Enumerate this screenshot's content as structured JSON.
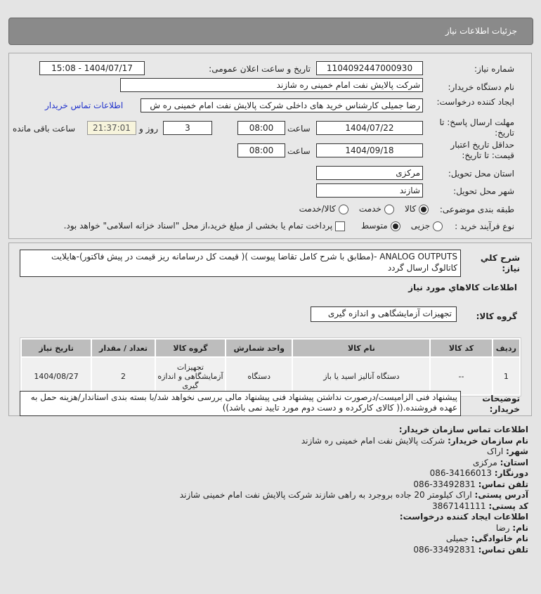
{
  "header": {
    "title": "جزئیات اطلاعات نیاز"
  },
  "form": {
    "need_number_label": "شماره نیاز:",
    "need_number": "1104092447000930",
    "announce_label": "تاریخ و ساعت اعلان عمومی:",
    "announce_value": "1404/07/17 - 15:08",
    "buyer_label": "نام دستگاه خریدار:",
    "buyer_value": "شرکت پالایش نفت امام خمینی  ره  شازند",
    "creator_label": "ایجاد کننده درخواست:",
    "creator_value": "رضا جمیلی کارشناس خرید های داخلی  شرکت پالایش نفت امام خمینی  ره  ش",
    "contact_link": "اطلاعات تماس خریدار",
    "deadline_label": "مهلت ارسال پاسخ: تا تاریخ:",
    "deadline_date": "1404/07/22",
    "time_label": "ساعت",
    "deadline_time": "08:00",
    "days": "3",
    "days_label": "روز و",
    "remaining": "21:37:01",
    "remaining_label": "ساعت باقی مانده",
    "validity_label": "حداقل تاریخ اعتبار قیمت: تا تاریخ:",
    "validity_date": "1404/09/18",
    "validity_time": "08:00",
    "province_label": "استان محل تحویل:",
    "province": "مرکزی",
    "city_label": "شهر محل تحویل:",
    "city": "شازند",
    "category_label": "طبقه بندی موضوعی:",
    "category_options": [
      "کالا",
      "خدمت",
      "کالا/خدمت"
    ],
    "category_selected": "کالا",
    "process_label": "نوع فرآیند خرید :",
    "process_options": [
      "جزیی",
      "متوسط"
    ],
    "process_selected": "متوسط",
    "payment_note": "پرداخت تمام یا بخشی از مبلغ خرید،از محل \"اسناد خزانه اسلامی\" خواهد بود."
  },
  "details": {
    "desc_label": "شرح کلي نياز:",
    "desc": "ANALOG OUTPUTS -(مطابق با شرح کامل تقاضا پیوست )( قیمت کل درسامانه ریز قیمت در پیش فاکتور)-هایلایت کاتالوگ ارسال گردد",
    "goods_title": "اطلاعات کالاهاي مورد نياز",
    "group_label": "گروه کالا:",
    "group": "تجهیزات آزمایشگاهی و اندازه گیری",
    "columns": [
      "ردیف",
      "کد کالا",
      "نام کالا",
      "واحد شمارش",
      "گروه کالا",
      "تعداد / مقدار",
      "تاریخ نیاز"
    ],
    "rows": [
      [
        "1",
        "--",
        "دستگاه آنالیز اسید یا باز",
        "دستگاه",
        "تجهیزات آزمایشگاهی و اندازه گیری",
        "2",
        "1404/08/27"
      ]
    ],
    "notes_label": "توضیحات خریدار:",
    "notes": "پیشنهاد فنی الزامیست/درصورت نداشتن پیشنهاد فنی پیشنهاد مالی بررسی نخواهد شد/با بسته بندی استاندار/هزینه حمل به عهده فروشنده.(( کالای کارکرده و دست دوم مورد تایید نمی باشد))"
  },
  "contact": {
    "title": "اطلاعات تماس سازمان خریدار:",
    "org_label": "نام سازمان خریدار:",
    "org": "شرکت پالایش نفت امام خمینی ره شازند",
    "city_label": "شهر:",
    "city": "اراک",
    "province_label": "استان:",
    "province": "مرکزی",
    "fax_label": "دورنگار:",
    "fax": "086-34166013",
    "phone_label": "تلفن تماس:",
    "phone": "086-33492831",
    "address_label": "آدرس پستی:",
    "address": "اراک کیلومتر 20 جاده بروجرد به راهی شازند شرکت پالایش نفت امام خمینی شازند",
    "postal_label": "کد پستی:",
    "postal": "3867141111",
    "creator_title": "اطلاعات ایجاد کننده درخواست:",
    "name_label": "نام:",
    "name": "رضا",
    "family_label": "نام خانوادگی:",
    "family": "جمیلی",
    "cphone_label": "تلفن تماس:",
    "cphone": "086-33492831"
  }
}
